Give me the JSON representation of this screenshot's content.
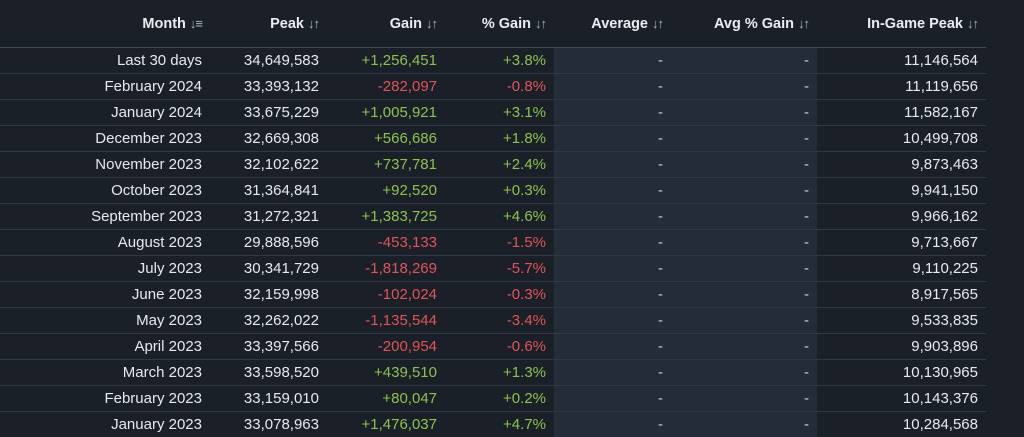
{
  "table": {
    "headers": {
      "month": "Month",
      "peak": "Peak",
      "gain": "Gain",
      "pct_gain": "% Gain",
      "average": "Average",
      "avg_pct_gain": "Avg % Gain",
      "ingame_peak": "In-Game Peak"
    },
    "sort_icons": {
      "active": "sort-descending-icon",
      "inactive": "sort-toggle-icon"
    },
    "colors": {
      "background": "#1b2028",
      "positive": "#8cc152",
      "negative": "#e0535a",
      "shaded_column": "#242c37"
    },
    "rows": [
      {
        "month": "Last 30 days",
        "peak": "34,649,583",
        "gain": "+1,256,451",
        "pct_gain": "+3.8%",
        "average": "-",
        "avg_pct_gain": "-",
        "ingame_peak": "11,146,564",
        "trend": "pos"
      },
      {
        "month": "February 2024",
        "peak": "33,393,132",
        "gain": "-282,097",
        "pct_gain": "-0.8%",
        "average": "-",
        "avg_pct_gain": "-",
        "ingame_peak": "11,119,656",
        "trend": "neg"
      },
      {
        "month": "January 2024",
        "peak": "33,675,229",
        "gain": "+1,005,921",
        "pct_gain": "+3.1%",
        "average": "-",
        "avg_pct_gain": "-",
        "ingame_peak": "11,582,167",
        "trend": "pos"
      },
      {
        "month": "December 2023",
        "peak": "32,669,308",
        "gain": "+566,686",
        "pct_gain": "+1.8%",
        "average": "-",
        "avg_pct_gain": "-",
        "ingame_peak": "10,499,708",
        "trend": "pos"
      },
      {
        "month": "November 2023",
        "peak": "32,102,622",
        "gain": "+737,781",
        "pct_gain": "+2.4%",
        "average": "-",
        "avg_pct_gain": "-",
        "ingame_peak": "9,873,463",
        "trend": "pos"
      },
      {
        "month": "October 2023",
        "peak": "31,364,841",
        "gain": "+92,520",
        "pct_gain": "+0.3%",
        "average": "-",
        "avg_pct_gain": "-",
        "ingame_peak": "9,941,150",
        "trend": "pos"
      },
      {
        "month": "September 2023",
        "peak": "31,272,321",
        "gain": "+1,383,725",
        "pct_gain": "+4.6%",
        "average": "-",
        "avg_pct_gain": "-",
        "ingame_peak": "9,966,162",
        "trend": "pos"
      },
      {
        "month": "August 2023",
        "peak": "29,888,596",
        "gain": "-453,133",
        "pct_gain": "-1.5%",
        "average": "-",
        "avg_pct_gain": "-",
        "ingame_peak": "9,713,667",
        "trend": "neg"
      },
      {
        "month": "July 2023",
        "peak": "30,341,729",
        "gain": "-1,818,269",
        "pct_gain": "-5.7%",
        "average": "-",
        "avg_pct_gain": "-",
        "ingame_peak": "9,110,225",
        "trend": "neg"
      },
      {
        "month": "June 2023",
        "peak": "32,159,998",
        "gain": "-102,024",
        "pct_gain": "-0.3%",
        "average": "-",
        "avg_pct_gain": "-",
        "ingame_peak": "8,917,565",
        "trend": "neg"
      },
      {
        "month": "May 2023",
        "peak": "32,262,022",
        "gain": "-1,135,544",
        "pct_gain": "-3.4%",
        "average": "-",
        "avg_pct_gain": "-",
        "ingame_peak": "9,533,835",
        "trend": "neg"
      },
      {
        "month": "April 2023",
        "peak": "33,397,566",
        "gain": "-200,954",
        "pct_gain": "-0.6%",
        "average": "-",
        "avg_pct_gain": "-",
        "ingame_peak": "9,903,896",
        "trend": "neg"
      },
      {
        "month": "March 2023",
        "peak": "33,598,520",
        "gain": "+439,510",
        "pct_gain": "+1.3%",
        "average": "-",
        "avg_pct_gain": "-",
        "ingame_peak": "10,130,965",
        "trend": "pos"
      },
      {
        "month": "February 2023",
        "peak": "33,159,010",
        "gain": "+80,047",
        "pct_gain": "+0.2%",
        "average": "-",
        "avg_pct_gain": "-",
        "ingame_peak": "10,143,376",
        "trend": "pos"
      },
      {
        "month": "January 2023",
        "peak": "33,078,963",
        "gain": "+1,476,037",
        "pct_gain": "+4.7%",
        "average": "-",
        "avg_pct_gain": "-",
        "ingame_peak": "10,284,568",
        "trend": "pos"
      }
    ]
  }
}
